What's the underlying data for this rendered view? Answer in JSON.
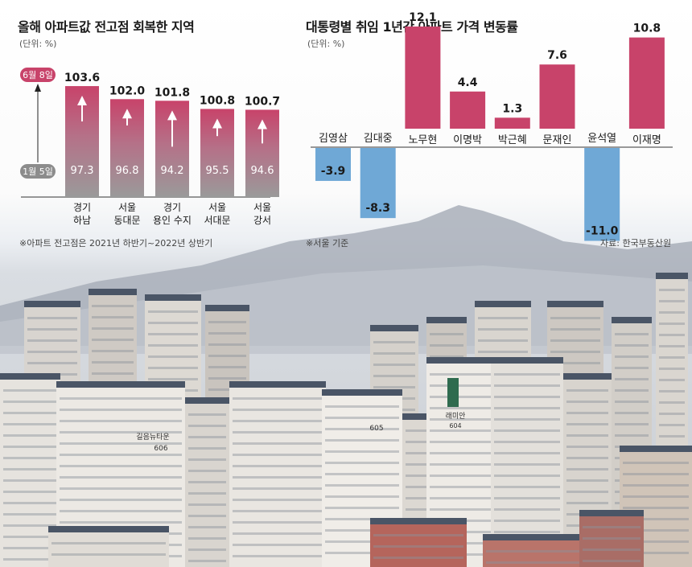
{
  "left_chart": {
    "title": "올해 아파트값 전고점 회복한 지역",
    "unit": "(단위: %)",
    "start_label": "1월 5일",
    "end_label": "6월 8일",
    "footnote": "※아파트 전고점은 2021년 하반기~2022년 상반기",
    "colors": {
      "top": "#c8436a",
      "bottom": "#9a9a9a",
      "start_badge": "#8c8c8c",
      "end_badge": "#c8436a"
    }
  },
  "right_chart": {
    "title": "대통령별 취임 1년간 아파트 가격 변동률",
    "unit": "(단위: %)",
    "footnote": "※서울 기준",
    "source": "자료: 한국부동산원",
    "colors": {
      "positive": "#c8436a",
      "negative": "#6fa8d6"
    }
  },
  "chart_data": [
    {
      "type": "bar",
      "title": "올해 아파트값 전고점 회복한 지역",
      "categories": [
        [
          "경기",
          "하남"
        ],
        [
          "서울",
          "동대문"
        ],
        [
          "경기",
          "용인 수지"
        ],
        [
          "서울",
          "서대문"
        ],
        [
          "서울",
          "강서"
        ]
      ],
      "series": [
        {
          "name": "1월 5일",
          "values": [
            97.3,
            96.8,
            94.2,
            95.5,
            94.6
          ]
        },
        {
          "name": "6월 8일",
          "values": [
            103.6,
            102.0,
            101.8,
            100.8,
            100.7
          ]
        }
      ],
      "ylabel": "(단위: %)"
    },
    {
      "type": "bar",
      "title": "대통령별 취임 1년간 아파트 가격 변동률",
      "categories": [
        "김영삼",
        "김대중",
        "노무현",
        "이명박",
        "박근혜",
        "문재인",
        "윤석열",
        "이재명"
      ],
      "values": [
        -3.9,
        -8.3,
        12.1,
        4.4,
        1.3,
        7.6,
        -11.0,
        10.8
      ],
      "value_labels": [
        "-3.9",
        "-8.3",
        "12.1",
        "4.4",
        "1.3",
        "7.6",
        "-11.0",
        "10.8"
      ],
      "ylabel": "(단위: %)"
    }
  ],
  "photo": {
    "sign_1": "길음뉴타운",
    "sign_1_num": "606",
    "sign_2": "605",
    "sign_3": "래미안",
    "sign_3_num": "604"
  }
}
